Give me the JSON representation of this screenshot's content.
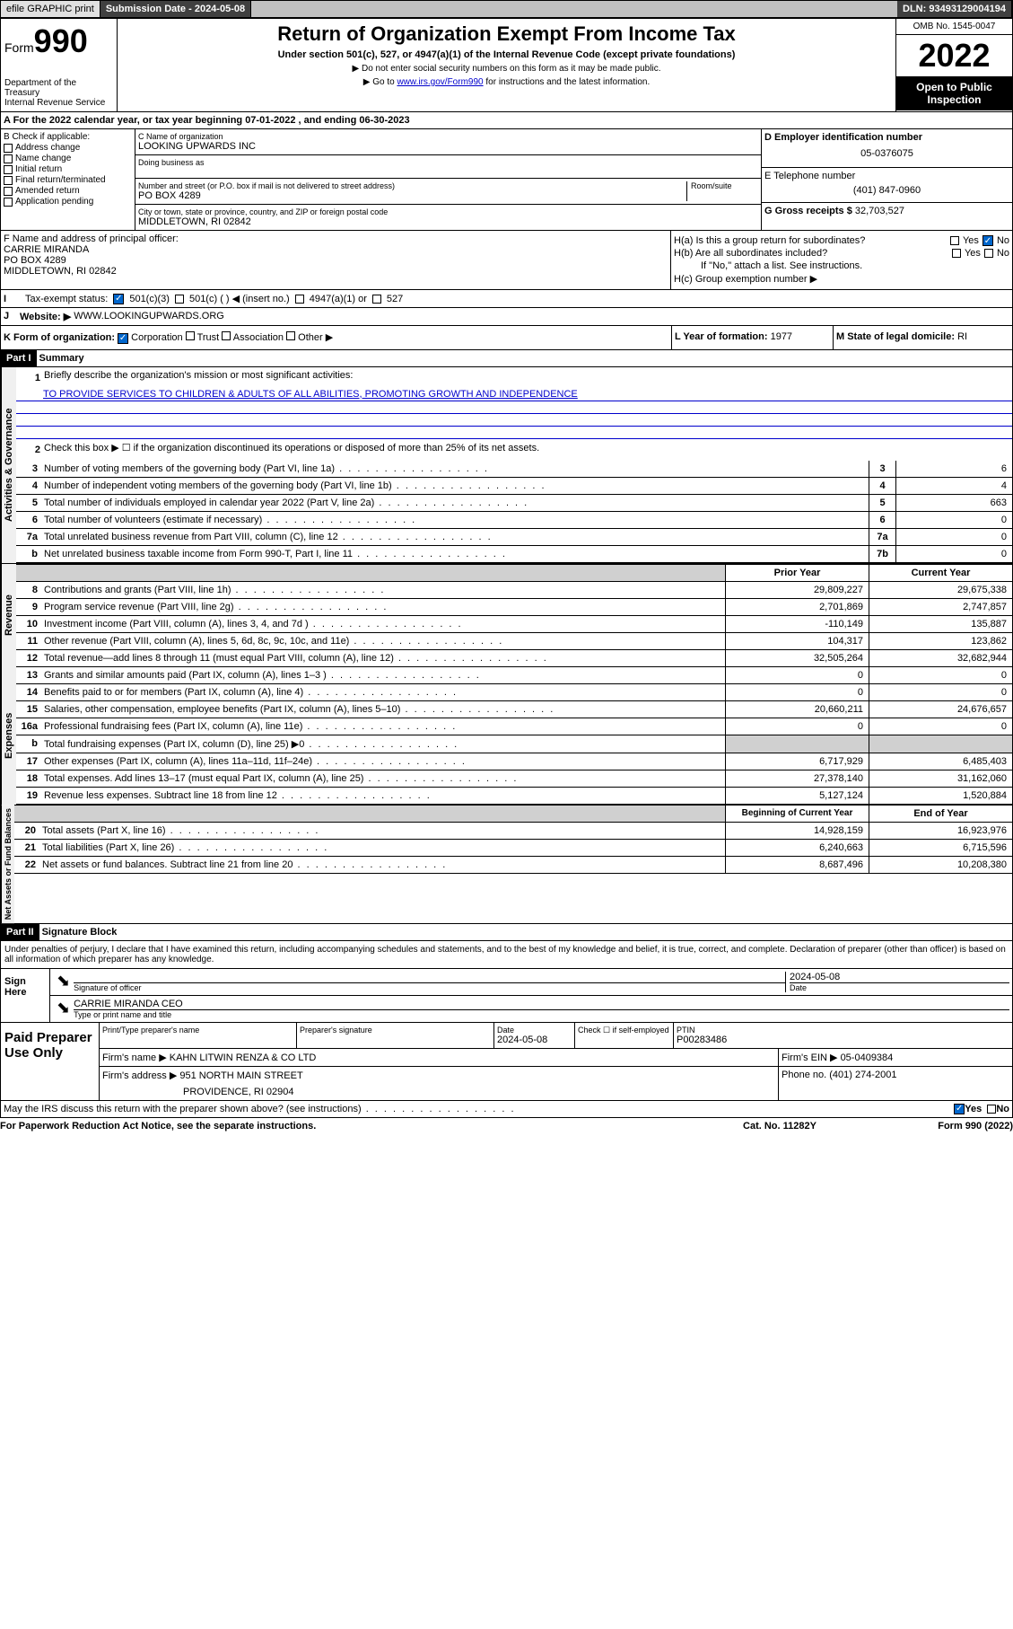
{
  "topbar": {
    "efile": "efile GRAPHIC print",
    "submission": "Submission Date - 2024-05-08",
    "dln": "DLN: 93493129004194"
  },
  "header": {
    "form_label": "Form",
    "form_num": "990",
    "dept": "Department of the Treasury",
    "irs": "Internal Revenue Service",
    "title": "Return of Organization Exempt From Income Tax",
    "subtitle": "Under section 501(c), 527, or 4947(a)(1) of the Internal Revenue Code (except private foundations)",
    "note1": "▶ Do not enter social security numbers on this form as it may be made public.",
    "note2_pre": "▶ Go to ",
    "note2_link": "www.irs.gov/Form990",
    "note2_post": " for instructions and the latest information.",
    "omb": "OMB No. 1545-0047",
    "year": "2022",
    "inspection": "Open to Public Inspection"
  },
  "section_a": "A For the 2022 calendar year, or tax year beginning 07-01-2022    , and ending 06-30-2023",
  "section_b": {
    "label": "B Check if applicable:",
    "opts": [
      "Address change",
      "Name change",
      "Initial return",
      "Final return/terminated",
      "Amended return",
      "Application pending"
    ]
  },
  "section_c": {
    "name_label": "C Name of organization",
    "name": "LOOKING UPWARDS INC",
    "dba_label": "Doing business as",
    "addr_label": "Number and street (or P.O. box if mail is not delivered to street address)",
    "room_label": "Room/suite",
    "addr": "PO BOX 4289",
    "city_label": "City or town, state or province, country, and ZIP or foreign postal code",
    "city": "MIDDLETOWN, RI  02842"
  },
  "section_d": {
    "label": "D Employer identification number",
    "ein": "05-0376075"
  },
  "section_e": {
    "label": "E Telephone number",
    "phone": "(401) 847-0960"
  },
  "section_g": {
    "label": "G Gross receipts $",
    "amount": "32,703,527"
  },
  "section_f": {
    "label": "F Name and address of principal officer:",
    "name": "CARRIE MIRANDA",
    "addr": "PO BOX 4289",
    "city": "MIDDLETOWN, RI  02842"
  },
  "section_h": {
    "ha": "H(a)  Is this a group return for subordinates?",
    "hb": "H(b)  Are all subordinates included?",
    "hb_note": "If \"No,\" attach a list. See instructions.",
    "hc": "H(c)  Group exemption number ▶",
    "yes": "Yes",
    "no": "No"
  },
  "section_i": {
    "label": "Tax-exempt status:",
    "opts": [
      "501(c)(3)",
      "501(c) (  ) ◀ (insert no.)",
      "4947(a)(1) or",
      "527"
    ]
  },
  "section_j": {
    "label": "Website: ▶",
    "url": "WWW.LOOKINGUPWARDS.ORG"
  },
  "section_k": {
    "label": "K Form of organization:",
    "opts": [
      "Corporation",
      "Trust",
      "Association",
      "Other ▶"
    ]
  },
  "section_l": {
    "label": "L Year of formation:",
    "val": "1977"
  },
  "section_m": {
    "label": "M State of legal domicile:",
    "val": "RI"
  },
  "part1": {
    "hdr": "Part I",
    "title": "Summary",
    "line1_label": "Briefly describe the organization's mission or most significant activities:",
    "mission": "TO PROVIDE SERVICES TO CHILDREN & ADULTS OF ALL ABILITIES, PROMOTING GROWTH AND INDEPENDENCE",
    "line2": "Check this box ▶ ☐  if the organization discontinued its operations or disposed of more than 25% of its net assets.",
    "vtab1": "Activities & Governance",
    "vtab2": "Revenue",
    "vtab3": "Expenses",
    "vtab4": "Net Assets or Fund Balances",
    "lines_gov": [
      {
        "n": "3",
        "t": "Number of voting members of the governing body (Part VI, line 1a)",
        "b": "3",
        "v": "6"
      },
      {
        "n": "4",
        "t": "Number of independent voting members of the governing body (Part VI, line 1b)",
        "b": "4",
        "v": "4"
      },
      {
        "n": "5",
        "t": "Total number of individuals employed in calendar year 2022 (Part V, line 2a)",
        "b": "5",
        "v": "663"
      },
      {
        "n": "6",
        "t": "Total number of volunteers (estimate if necessary)",
        "b": "6",
        "v": "0"
      },
      {
        "n": "7a",
        "t": "Total unrelated business revenue from Part VIII, column (C), line 12",
        "b": "7a",
        "v": "0"
      },
      {
        "n": "b",
        "t": "Net unrelated business taxable income from Form 990-T, Part I, line 11",
        "b": "7b",
        "v": "0"
      }
    ],
    "col_py": "Prior Year",
    "col_cy": "Current Year",
    "lines_rev": [
      {
        "n": "8",
        "t": "Contributions and grants (Part VIII, line 1h)",
        "py": "29,809,227",
        "cy": "29,675,338"
      },
      {
        "n": "9",
        "t": "Program service revenue (Part VIII, line 2g)",
        "py": "2,701,869",
        "cy": "2,747,857"
      },
      {
        "n": "10",
        "t": "Investment income (Part VIII, column (A), lines 3, 4, and 7d )",
        "py": "-110,149",
        "cy": "135,887"
      },
      {
        "n": "11",
        "t": "Other revenue (Part VIII, column (A), lines 5, 6d, 8c, 9c, 10c, and 11e)",
        "py": "104,317",
        "cy": "123,862"
      },
      {
        "n": "12",
        "t": "Total revenue—add lines 8 through 11 (must equal Part VIII, column (A), line 12)",
        "py": "32,505,264",
        "cy": "32,682,944"
      }
    ],
    "lines_exp": [
      {
        "n": "13",
        "t": "Grants and similar amounts paid (Part IX, column (A), lines 1–3 )",
        "py": "0",
        "cy": "0"
      },
      {
        "n": "14",
        "t": "Benefits paid to or for members (Part IX, column (A), line 4)",
        "py": "0",
        "cy": "0"
      },
      {
        "n": "15",
        "t": "Salaries, other compensation, employee benefits (Part IX, column (A), lines 5–10)",
        "py": "20,660,211",
        "cy": "24,676,657"
      },
      {
        "n": "16a",
        "t": "Professional fundraising fees (Part IX, column (A), line 11e)",
        "py": "0",
        "cy": "0"
      },
      {
        "n": "b",
        "t": "Total fundraising expenses (Part IX, column (D), line 25) ▶0",
        "py": "",
        "cy": "",
        "shaded": true
      },
      {
        "n": "17",
        "t": "Other expenses (Part IX, column (A), lines 11a–11d, 11f–24e)",
        "py": "6,717,929",
        "cy": "6,485,403"
      },
      {
        "n": "18",
        "t": "Total expenses. Add lines 13–17 (must equal Part IX, column (A), line 25)",
        "py": "27,378,140",
        "cy": "31,162,060"
      },
      {
        "n": "19",
        "t": "Revenue less expenses. Subtract line 18 from line 12",
        "py": "5,127,124",
        "cy": "1,520,884"
      }
    ],
    "col_boy": "Beginning of Current Year",
    "col_eoy": "End of Year",
    "lines_net": [
      {
        "n": "20",
        "t": "Total assets (Part X, line 16)",
        "py": "14,928,159",
        "cy": "16,923,976"
      },
      {
        "n": "21",
        "t": "Total liabilities (Part X, line 26)",
        "py": "6,240,663",
        "cy": "6,715,596"
      },
      {
        "n": "22",
        "t": "Net assets or fund balances. Subtract line 21 from line 20",
        "py": "8,687,496",
        "cy": "10,208,380"
      }
    ]
  },
  "part2": {
    "hdr": "Part II",
    "title": "Signature Block",
    "declare": "Under penalties of perjury, I declare that I have examined this return, including accompanying schedules and statements, and to the best of my knowledge and belief, it is true, correct, and complete. Declaration of preparer (other than officer) is based on all information of which preparer has any knowledge.",
    "sign_here": "Sign Here",
    "sig_officer": "Signature of officer",
    "sig_date": "2024-05-08",
    "date_label": "Date",
    "officer": "CARRIE MIRANDA CEO",
    "officer_label": "Type or print name and title",
    "paid": "Paid Preparer Use Only",
    "prep_name_label": "Print/Type preparer's name",
    "prep_sig_label": "Preparer's signature",
    "prep_date_label": "Date",
    "prep_date": "2024-05-08",
    "check_label": "Check ☐ if self-employed",
    "ptin_label": "PTIN",
    "ptin": "P00283486",
    "firm_name_label": "Firm's name     ▶",
    "firm_name": "KAHN LITWIN RENZA & CO LTD",
    "firm_ein_label": "Firm's EIN ▶",
    "firm_ein": "05-0409384",
    "firm_addr_label": "Firm's address ▶",
    "firm_addr": "951 NORTH MAIN STREET",
    "firm_city": "PROVIDENCE, RI  02904",
    "phone_label": "Phone no.",
    "phone": "(401) 274-2001",
    "discuss": "May the IRS discuss this return with the preparer shown above? (see instructions)",
    "yes": "Yes",
    "no": "No"
  },
  "footer": {
    "paperwork": "For Paperwork Reduction Act Notice, see the separate instructions.",
    "cat": "Cat. No. 11282Y",
    "form": "Form 990 (2022)"
  }
}
